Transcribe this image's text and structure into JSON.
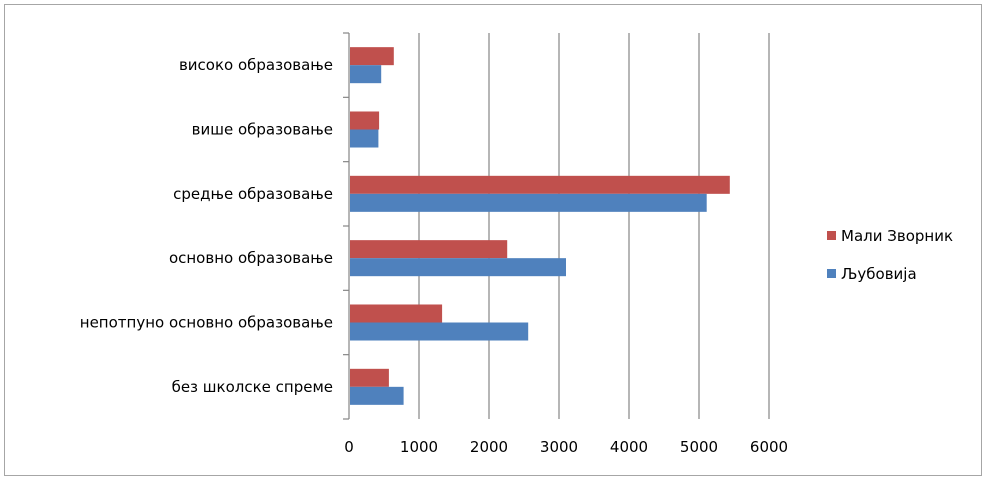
{
  "chart_data": {
    "type": "bar",
    "orientation": "horizontal",
    "categories": [
      "без школске спреме",
      "непотпуно основно образовање",
      "основно образовање",
      "средње образовање",
      "више образовање",
      "високо образовање"
    ],
    "series": [
      {
        "name": "Љубовија",
        "color": "#4f81bd",
        "values": [
          780,
          2560,
          3100,
          5110,
          420,
          460
        ]
      },
      {
        "name": "Мали Зворник",
        "color": "#c0504d",
        "values": [
          570,
          1330,
          2260,
          5440,
          430,
          640
        ]
      }
    ],
    "legend_order": [
      "Мали Зворник",
      "Љубовија"
    ],
    "xlim": [
      0,
      6000
    ],
    "xticks": [
      0,
      1000,
      2000,
      3000,
      4000,
      5000,
      6000
    ],
    "title": "",
    "xlabel": "",
    "ylabel": "",
    "grid": true,
    "legend_position": "right"
  }
}
